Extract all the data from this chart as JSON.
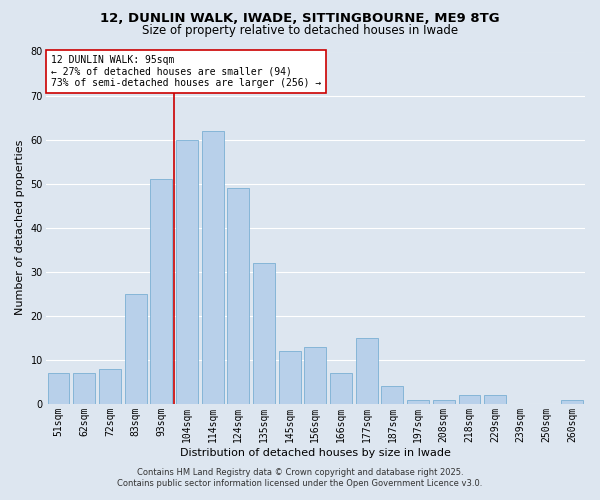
{
  "title_line1": "12, DUNLIN WALK, IWADE, SITTINGBOURNE, ME9 8TG",
  "title_line2": "Size of property relative to detached houses in Iwade",
  "xlabel": "Distribution of detached houses by size in Iwade",
  "ylabel": "Number of detached properties",
  "bar_labels": [
    "51sqm",
    "62sqm",
    "72sqm",
    "83sqm",
    "93sqm",
    "104sqm",
    "114sqm",
    "124sqm",
    "135sqm",
    "145sqm",
    "156sqm",
    "166sqm",
    "177sqm",
    "187sqm",
    "197sqm",
    "208sqm",
    "218sqm",
    "229sqm",
    "239sqm",
    "250sqm",
    "260sqm"
  ],
  "bar_values": [
    7,
    7,
    8,
    25,
    51,
    60,
    62,
    49,
    32,
    12,
    13,
    7,
    15,
    4,
    1,
    1,
    2,
    2,
    0,
    0,
    1
  ],
  "bar_color": "#b8d0ea",
  "bar_edgecolor": "#7aafd4",
  "background_color": "#dde6f0",
  "grid_color": "#ffffff",
  "vline_x": 4.5,
  "vline_color": "#cc0000",
  "annotation_text": "12 DUNLIN WALK: 95sqm\n← 27% of detached houses are smaller (94)\n73% of semi-detached houses are larger (256) →",
  "annotation_box_edgecolor": "#cc0000",
  "annotation_box_facecolor": "#ffffff",
  "ylim": [
    0,
    80
  ],
  "yticks": [
    0,
    10,
    20,
    30,
    40,
    50,
    60,
    70,
    80
  ],
  "footer_line1": "Contains HM Land Registry data © Crown copyright and database right 2025.",
  "footer_line2": "Contains public sector information licensed under the Open Government Licence v3.0.",
  "title_fontsize": 9.5,
  "subtitle_fontsize": 8.5,
  "axis_label_fontsize": 8,
  "tick_fontsize": 7,
  "annotation_fontsize": 7,
  "footer_fontsize": 6
}
